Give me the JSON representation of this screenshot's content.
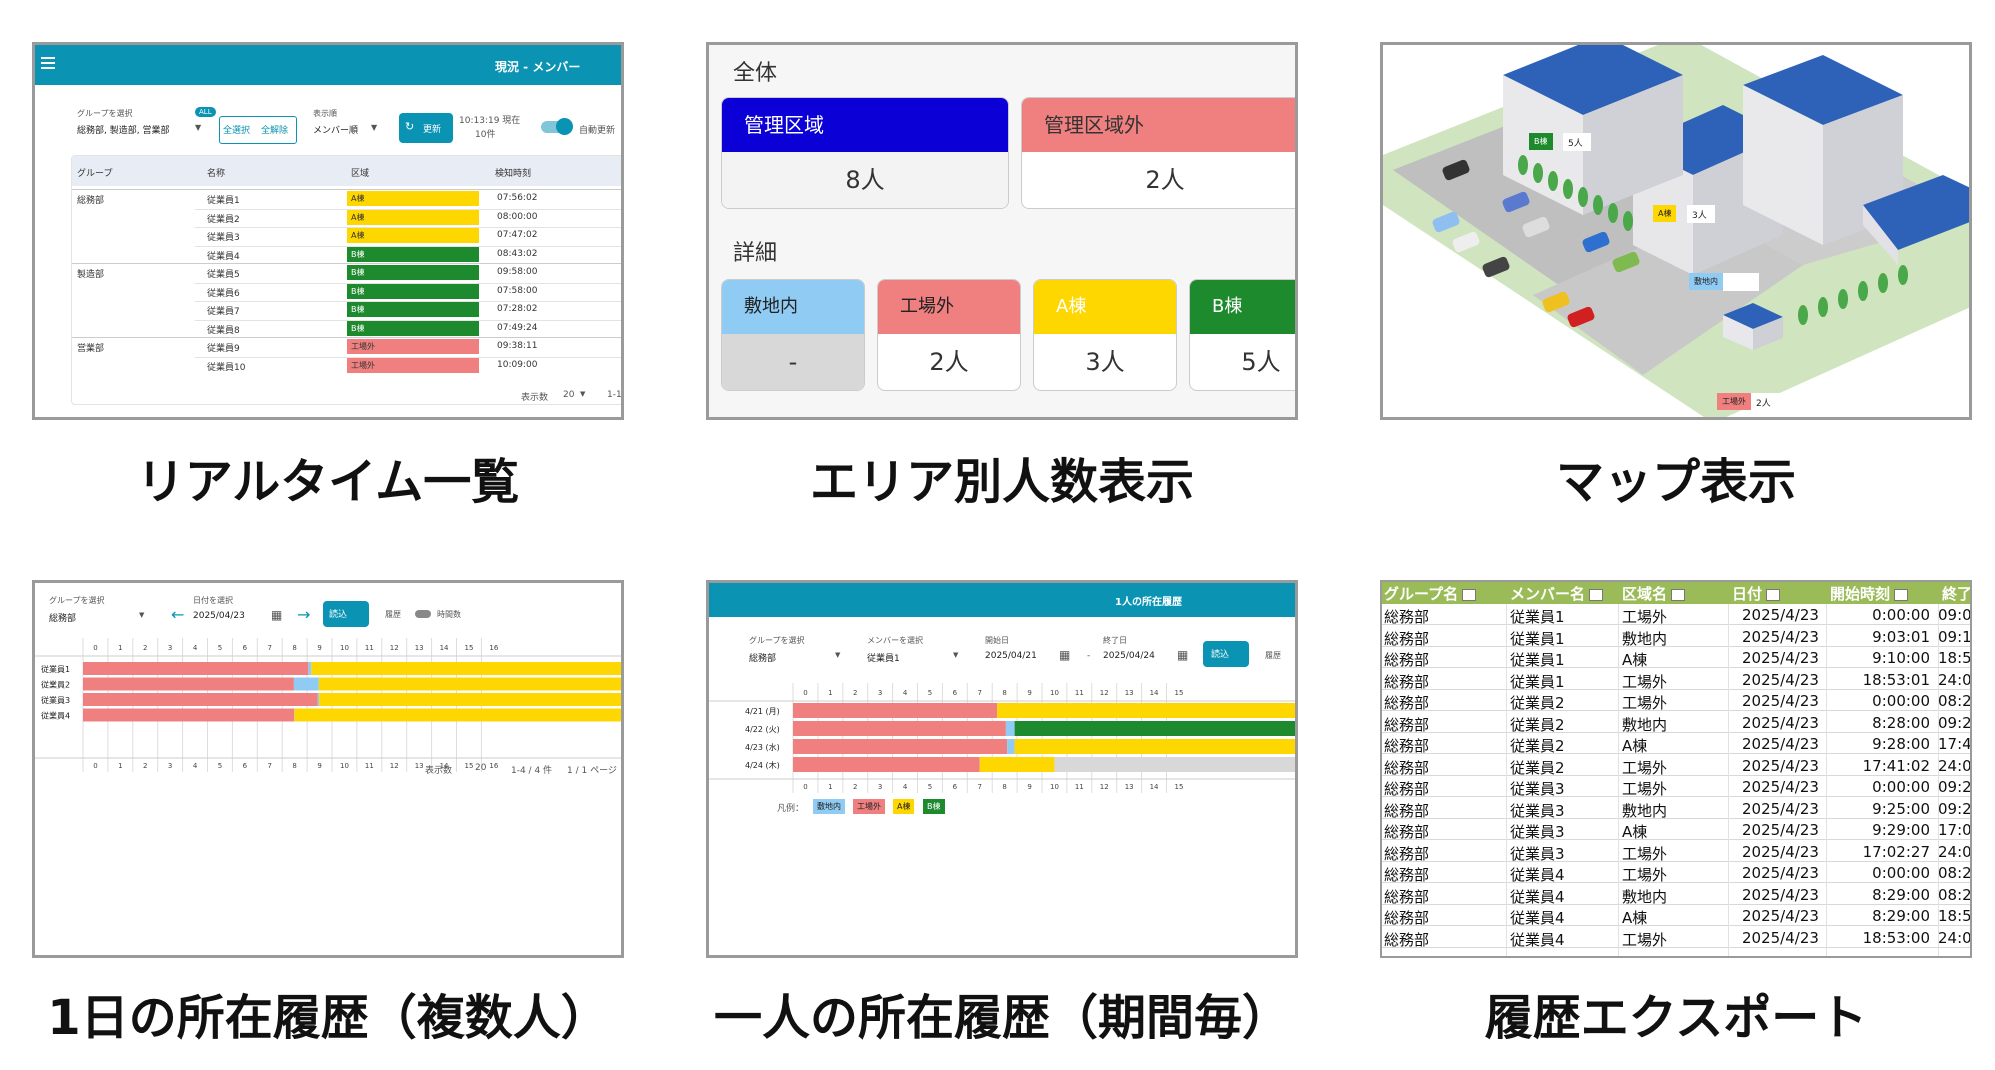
{
  "captions": [
    "リアルタイム一覧",
    "エリア別人数表示",
    "マップ表示",
    "1日の所在履歴（複数人）",
    "一人の所在履歴（期間毎）",
    "履歴エクスポート"
  ],
  "colors": {
    "teal": "#0a93b2",
    "inside": "#8fcbf2",
    "outside": "#f08080",
    "a": "#ffd700",
    "b": "#1e8a2e",
    "managed": "#0b00d6"
  },
  "p1": {
    "title": "現況 - メンバー",
    "group_label": "グループを選択",
    "group_value": "総務部, 製造部, 営業部",
    "all_badge": "ALL",
    "select_all": "全選択",
    "clear_all": "全解除",
    "sort_label": "表示順",
    "sort_value": "メンバー順",
    "refresh": "更新",
    "now": "10:13:19 現在",
    "count": "10件",
    "auto": "自動更新",
    "headers": [
      "グループ",
      "名称",
      "区域",
      "検知時刻"
    ],
    "groups": [
      "総務部",
      "製造部",
      "営業部"
    ],
    "rows": [
      {
        "name": "従業員1",
        "area": "A棟",
        "time": "07:56:02",
        "c": "#ffd700"
      },
      {
        "name": "従業員2",
        "area": "A棟",
        "time": "08:00:00",
        "c": "#ffd700"
      },
      {
        "name": "従業員3",
        "area": "A棟",
        "time": "07:47:02",
        "c": "#ffd700"
      },
      {
        "name": "従業員4",
        "area": "B棟",
        "time": "08:43:02",
        "c": "#1e8a2e"
      },
      {
        "name": "従業員5",
        "area": "B棟",
        "time": "09:58:00",
        "c": "#1e8a2e"
      },
      {
        "name": "従業員6",
        "area": "B棟",
        "time": "07:58:00",
        "c": "#1e8a2e"
      },
      {
        "name": "従業員7",
        "area": "B棟",
        "time": "07:28:02",
        "c": "#1e8a2e"
      },
      {
        "name": "従業員8",
        "area": "B棟",
        "time": "07:49:24",
        "c": "#1e8a2e"
      },
      {
        "name": "従業員9",
        "area": "工場外",
        "time": "09:38:11",
        "c": "#f08080"
      },
      {
        "name": "従業員10",
        "area": "工場外",
        "time": "10:09:00",
        "c": "#f08080"
      }
    ],
    "footer_label": "表示数",
    "footer_value": "20",
    "footer_range": "1-1"
  },
  "p2": {
    "overall": "全体",
    "managed": "管理区域",
    "managed_val": "8人",
    "unmanaged": "管理区域外",
    "unmanaged_val": "2人",
    "detail": "詳細",
    "cards": [
      {
        "label": "敷地内",
        "value": "-"
      },
      {
        "label": "工場外",
        "value": "2人"
      },
      {
        "label": "A棟",
        "value": "3人"
      },
      {
        "label": "B棟",
        "value": "5人"
      }
    ]
  },
  "p3": {
    "tags": [
      {
        "label": "B棟",
        "value": "5人"
      },
      {
        "label": "A棟",
        "value": "3人"
      },
      {
        "label": "敷地内",
        "value": ""
      },
      {
        "label": "工場外",
        "value": "2人"
      }
    ]
  },
  "p4": {
    "group_label": "グループを選択",
    "group_value": "総務部",
    "date_label": "日付を選択",
    "date_value": "2025/04/23",
    "load": "読込",
    "history": "履歴",
    "hours_label": "時間数",
    "ticks": [
      "0",
      "1",
      "2",
      "3",
      "4",
      "5",
      "6",
      "7",
      "8",
      "9",
      "10",
      "11",
      "12",
      "13",
      "14",
      "15",
      "16"
    ],
    "members": [
      "従業員1",
      "従業員2",
      "従業員3",
      "従業員4"
    ],
    "footer_label": "表示数",
    "footer_value": "20",
    "footer_range": "1-4 / 4 件",
    "footer_page": "1 / 1 ページ"
  },
  "p5": {
    "title": "1人の所在履歴",
    "group_label": "グループを選択",
    "group_value": "総務部",
    "member_label": "メンバーを選択",
    "member_value": "従業員1",
    "start_label": "開始日",
    "start_value": "2025/04/21",
    "end_label": "終了日",
    "end_value": "2025/04/24",
    "load": "読込",
    "history": "履歴",
    "ticks": [
      "0",
      "1",
      "2",
      "3",
      "4",
      "5",
      "6",
      "7",
      "8",
      "9",
      "10",
      "11",
      "12",
      "13",
      "14",
      "15"
    ],
    "days": [
      "4/21 (月)",
      "4/22 (火)",
      "4/23 (水)",
      "4/24 (木)"
    ],
    "legend_label": "凡例：",
    "legend": [
      "敷地内",
      "工場外",
      "A棟",
      "B棟"
    ]
  },
  "p6": {
    "headers": [
      "グループ名",
      "メンバー名",
      "区域名",
      "日付",
      "開始時刻",
      "終了"
    ],
    "rows": [
      [
        "総務部",
        "従業員1",
        "工場外",
        "2025/4/23",
        "0:00:00",
        "09:0"
      ],
      [
        "総務部",
        "従業員1",
        "敷地内",
        "2025/4/23",
        "9:03:01",
        "09:1"
      ],
      [
        "総務部",
        "従業員1",
        "A棟",
        "2025/4/23",
        "9:10:00",
        "18:5"
      ],
      [
        "総務部",
        "従業員1",
        "工場外",
        "2025/4/23",
        "18:53:01",
        "24:0"
      ],
      [
        "総務部",
        "従業員2",
        "工場外",
        "2025/4/23",
        "0:00:00",
        "08:2"
      ],
      [
        "総務部",
        "従業員2",
        "敷地内",
        "2025/4/23",
        "8:28:00",
        "09:2"
      ],
      [
        "総務部",
        "従業員2",
        "A棟",
        "2025/4/23",
        "9:28:00",
        "17:4"
      ],
      [
        "総務部",
        "従業員2",
        "工場外",
        "2025/4/23",
        "17:41:02",
        "24:0"
      ],
      [
        "総務部",
        "従業員3",
        "工場外",
        "2025/4/23",
        "0:00:00",
        "09:2"
      ],
      [
        "総務部",
        "従業員3",
        "敷地内",
        "2025/4/23",
        "9:25:00",
        "09:2"
      ],
      [
        "総務部",
        "従業員3",
        "A棟",
        "2025/4/23",
        "9:29:00",
        "17:0"
      ],
      [
        "総務部",
        "従業員3",
        "工場外",
        "2025/4/23",
        "17:02:27",
        "24:0"
      ],
      [
        "総務部",
        "従業員4",
        "工場外",
        "2025/4/23",
        "0:00:00",
        "08:2"
      ],
      [
        "総務部",
        "従業員4",
        "敷地内",
        "2025/4/23",
        "8:29:00",
        "08:2"
      ],
      [
        "総務部",
        "従業員4",
        "A棟",
        "2025/4/23",
        "8:29:00",
        "18:5"
      ],
      [
        "総務部",
        "従業員4",
        "工場外",
        "2025/4/23",
        "18:53:00",
        "24:0"
      ]
    ]
  }
}
